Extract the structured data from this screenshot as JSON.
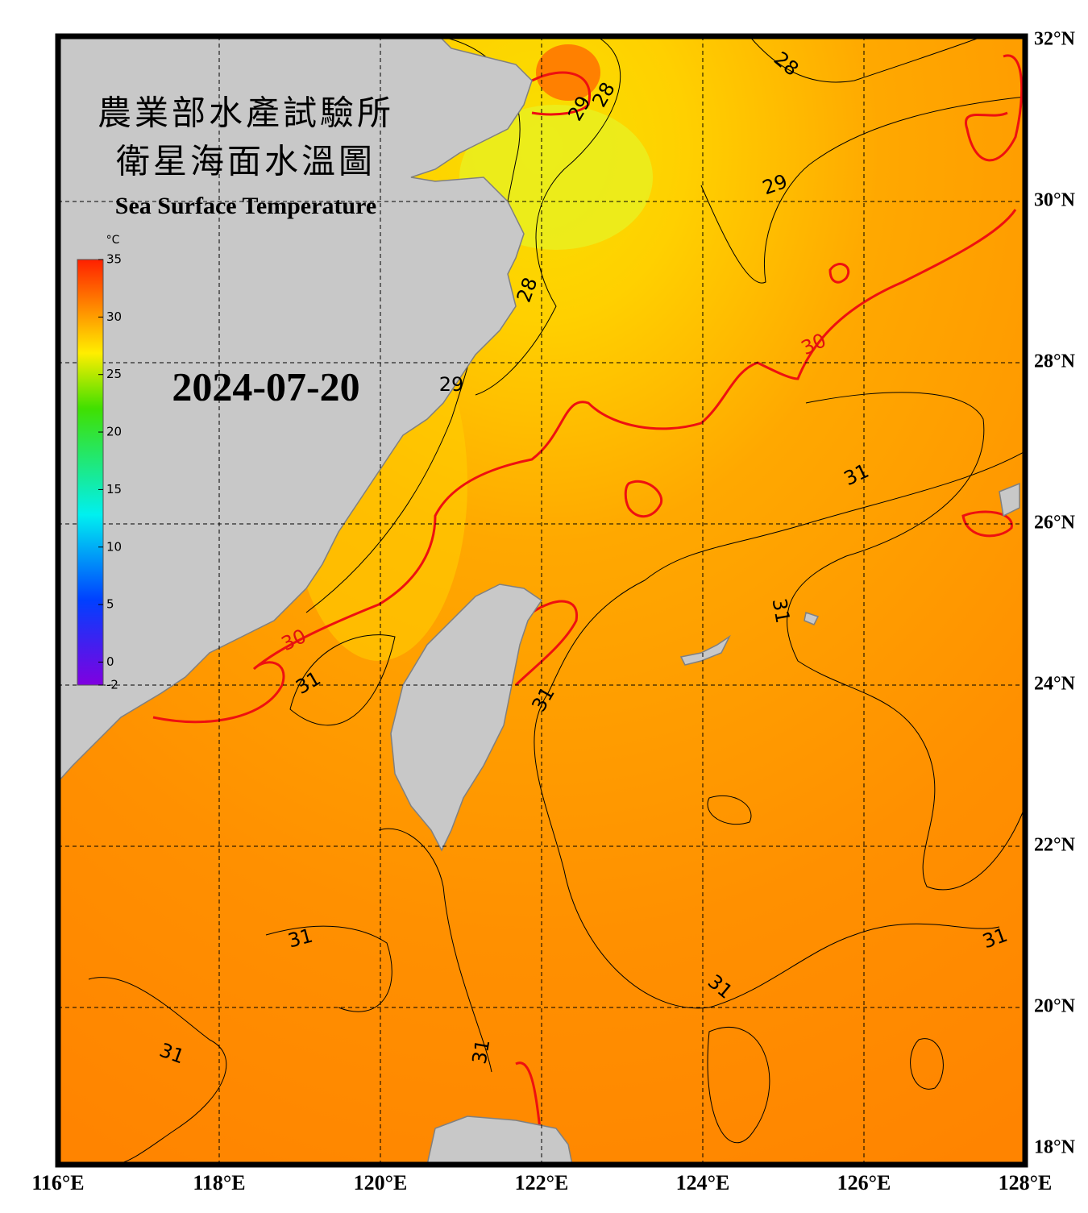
{
  "header": {
    "title_zh_1": "農業部水產試驗所",
    "title_zh_2": "衛星海面水溫圖",
    "title_en": "Sea Surface Temperature",
    "date": "2024-07-20"
  },
  "colorbar": {
    "unit": "°C",
    "range": [
      -2,
      35
    ],
    "ticks": [
      -2,
      0,
      5,
      10,
      15,
      20,
      25,
      30,
      35
    ]
  },
  "map": {
    "lon_range": [
      116,
      128
    ],
    "lat_range": [
      18,
      32
    ],
    "lon_labels": [
      {
        "value": 116,
        "label": "116°E"
      },
      {
        "value": 118,
        "label": "118°E"
      },
      {
        "value": 120,
        "label": "120°E"
      },
      {
        "value": 122,
        "label": "122°E"
      },
      {
        "value": 124,
        "label": "124°E"
      },
      {
        "value": 126,
        "label": "126°E"
      },
      {
        "value": 128,
        "label": "128°E"
      }
    ],
    "lat_labels": [
      {
        "value": 18,
        "label": "18°N"
      },
      {
        "value": 20,
        "label": "20°N"
      },
      {
        "value": 22,
        "label": "22°N"
      },
      {
        "value": 24,
        "label": "24°N"
      },
      {
        "value": 26,
        "label": "26°N"
      },
      {
        "value": 28,
        "label": "28°N"
      },
      {
        "value": 30,
        "label": "30°N"
      },
      {
        "value": 32,
        "label": "32°N"
      }
    ],
    "contour_labels": [
      28,
      28,
      29,
      29,
      28,
      29,
      30,
      30,
      31,
      31,
      31,
      31,
      31,
      31,
      31,
      31,
      31
    ]
  }
}
